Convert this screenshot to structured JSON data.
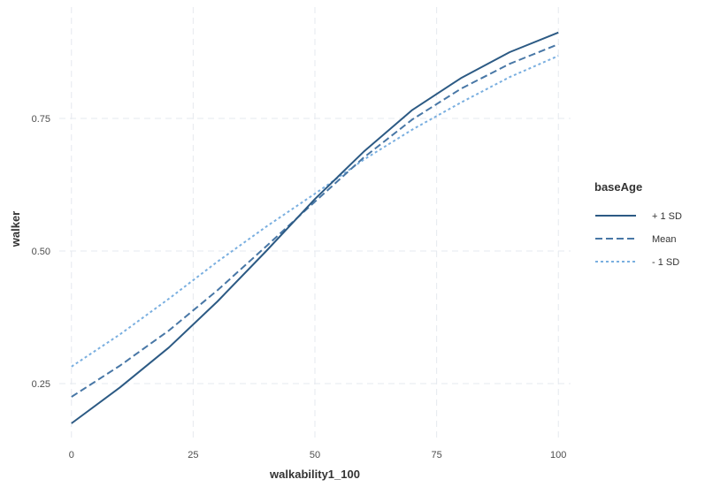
{
  "chart_data": {
    "type": "line",
    "title": "",
    "xlabel": "walkability1_100",
    "ylabel": "walker",
    "xlim": [
      -2.5,
      102.5
    ],
    "ylim": [
      0.14,
      0.96
    ],
    "x_ticks": [
      0,
      25,
      50,
      75,
      100
    ],
    "x_tick_labels": [
      "0",
      "25",
      "50",
      "75",
      "100"
    ],
    "y_ticks": [
      0.25,
      0.5,
      0.75
    ],
    "y_tick_labels": [
      "0.25",
      "0.50",
      "0.75"
    ],
    "grid": true,
    "legend": {
      "title": "baseAge",
      "position": "right"
    },
    "series": [
      {
        "name": "+ 1 SD",
        "color": "#2c5a84",
        "dash": "solid",
        "x": [
          0,
          10,
          20,
          30,
          40,
          50,
          60,
          70,
          80,
          90,
          100
        ],
        "y": [
          0.175,
          0.243,
          0.318,
          0.405,
          0.5,
          0.598,
          0.687,
          0.766,
          0.826,
          0.875,
          0.912
        ]
      },
      {
        "name": "Mean",
        "color": "#4877a6",
        "dash": "dashed",
        "x": [
          0,
          10,
          20,
          30,
          40,
          50,
          60,
          70,
          80,
          90,
          100
        ],
        "y": [
          0.225,
          0.284,
          0.35,
          0.426,
          0.509,
          0.593,
          0.676,
          0.748,
          0.806,
          0.853,
          0.89
        ]
      },
      {
        "name": "- 1 SD",
        "color": "#7aafe0",
        "dash": "dotted",
        "x": [
          0,
          10,
          20,
          30,
          40,
          50,
          60,
          70,
          80,
          90,
          100
        ],
        "y": [
          0.282,
          0.343,
          0.41,
          0.48,
          0.546,
          0.608,
          0.672,
          0.729,
          0.78,
          0.828,
          0.868
        ]
      }
    ]
  }
}
